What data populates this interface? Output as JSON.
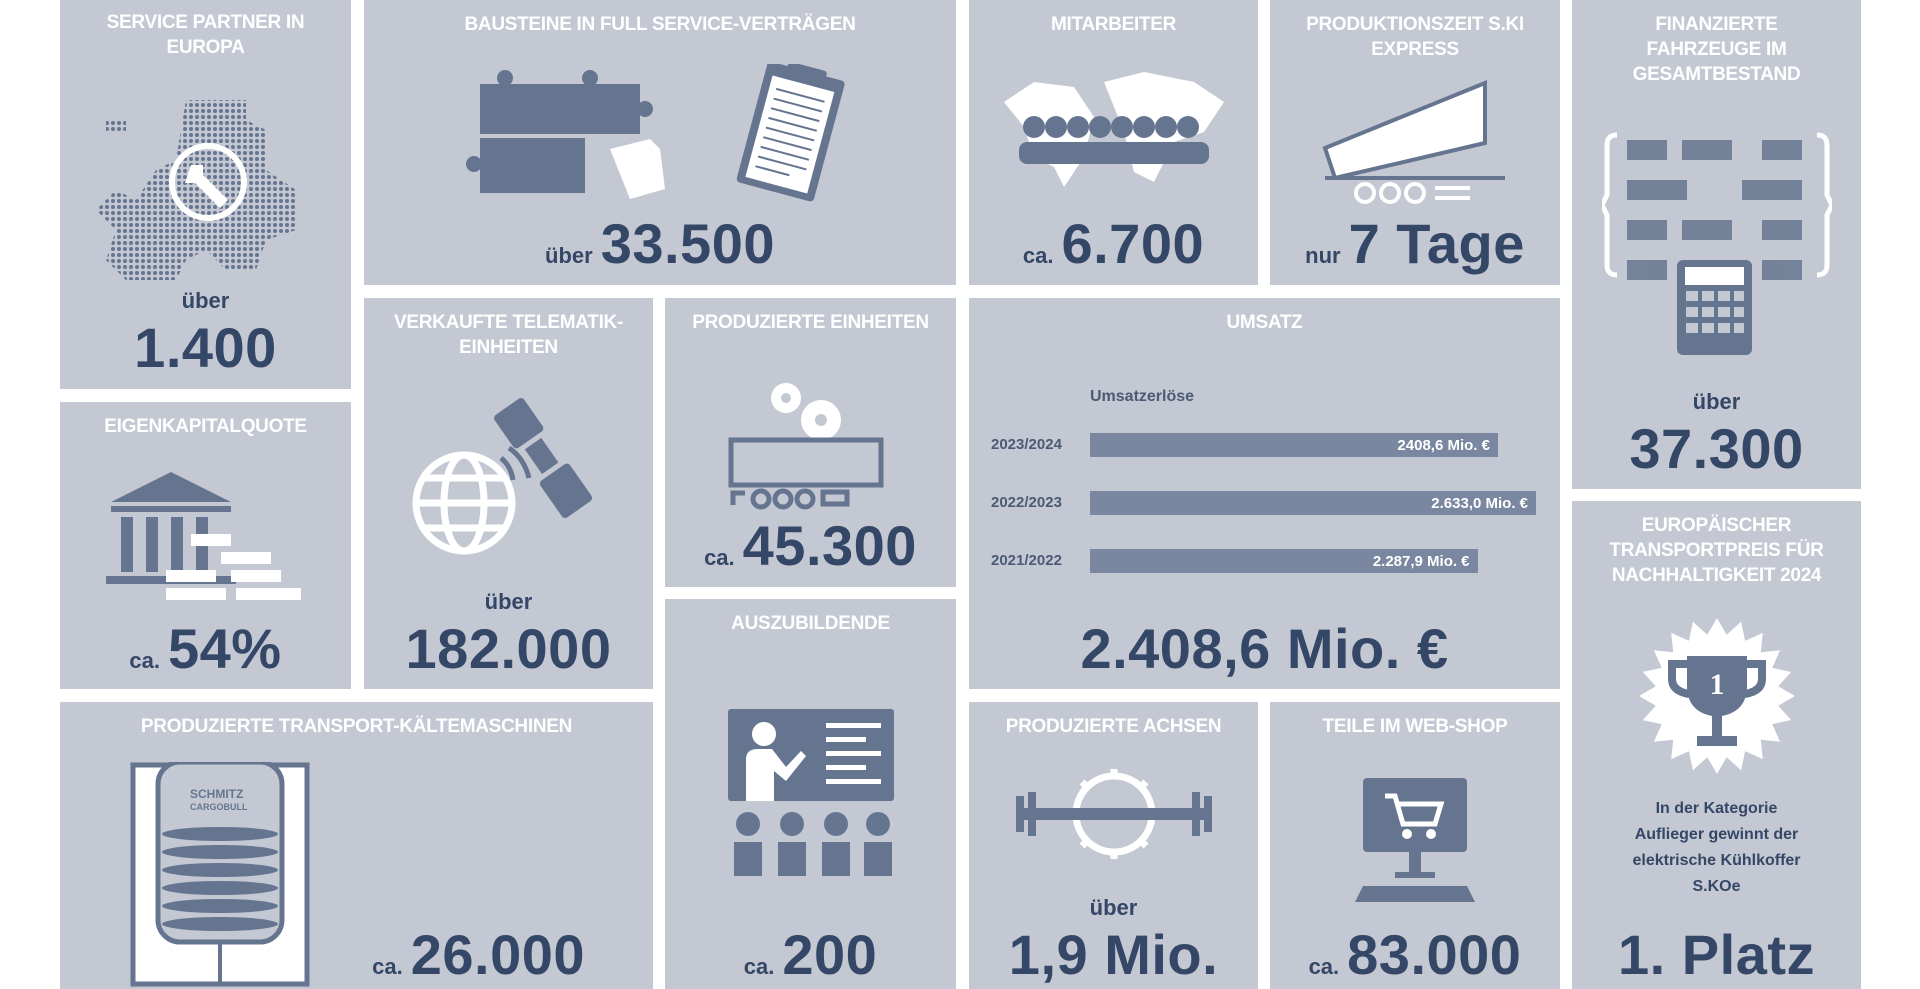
{
  "colors": {
    "tile_bg": "#c4c8d3",
    "title": "#ffffff",
    "value": "#344766",
    "icon": "#66758f",
    "bar": "#7a87a0"
  },
  "tiles": {
    "service_partner": {
      "title": "Service Partner in Europa",
      "prefix": "über",
      "value": "1.400",
      "icon": "europe-map-wrench-icon"
    },
    "bausteine": {
      "title": "Bausteine in Full Service-Verträgen",
      "prefix": "über",
      "value": "33.500",
      "icon": "puzzle-clipboard-icon"
    },
    "mitarbeiter": {
      "title": "Mitarbeiter",
      "prefix": "ca.",
      "value": "6.700",
      "icon": "world-people-icon"
    },
    "produktionszeit": {
      "title": "Produktionszeit S.KI Express",
      "prefix": "nur",
      "value": "7 Tage",
      "icon": "trailer-icon"
    },
    "finanzierte": {
      "title": "Finanzierte Fahrzeuge im Gesamtbestand",
      "prefix": "über",
      "value": "37.300",
      "icon": "calculator-fleet-icon"
    },
    "eigenkapital": {
      "title": "Eigenkapitalquote",
      "prefix": "ca.",
      "value": "54%",
      "icon": "bank-money-icon"
    },
    "telematik": {
      "title": "Verkaufte Telematik-Einheiten",
      "prefix": "über",
      "value": "182.000",
      "icon": "satellite-globe-icon"
    },
    "einheiten": {
      "title": "Produzierte Einheiten",
      "prefix": "ca.",
      "value": "45.300",
      "icon": "gears-trailer-icon"
    },
    "umsatz": {
      "title": "Umsatz",
      "value": "2.408,6 Mio. €"
    },
    "kaeltemaschinen": {
      "title": "Produzierte Transport-Kältemaschinen",
      "prefix": "ca.",
      "value": "26.000",
      "icon": "refrigeration-unit-icon",
      "logo_text": "SCHMITZ CARGOBULL"
    },
    "auszubildende": {
      "title": "Auszubildende",
      "prefix": "ca.",
      "value": "200",
      "icon": "teacher-class-icon"
    },
    "achsen": {
      "title": "Produzierte Achsen",
      "prefix": "über",
      "value": "1,9 Mio.",
      "icon": "axle-gear-icon"
    },
    "webshop": {
      "title": "Teile im Web-Shop",
      "prefix": "ca.",
      "value": "83.000",
      "icon": "shopping-cart-monitor-icon"
    },
    "transportpreis": {
      "title": "Europäischer Transportpreis für Nachhaltigkeit 2024",
      "text": "In der Kategorie Auflieger gewinnt der elektrische Kühlkoffer S.KOe",
      "value": "1. Platz",
      "icon": "trophy-icon",
      "trophy_number": "1"
    }
  },
  "chart_data": {
    "type": "bar",
    "orientation": "horizontal",
    "title": "Umsatzerlöse",
    "categories": [
      "2023/2024",
      "2022/2023",
      "2021/2022"
    ],
    "values": [
      2408.6,
      2633.0,
      2287.9
    ],
    "labels": [
      "2408,6 Mio. €",
      "2.633,0 Mio. €",
      "2.287,9 Mio. €"
    ],
    "unit": "Mio. €",
    "xlim": [
      0,
      2633.0
    ],
    "grid": false
  }
}
